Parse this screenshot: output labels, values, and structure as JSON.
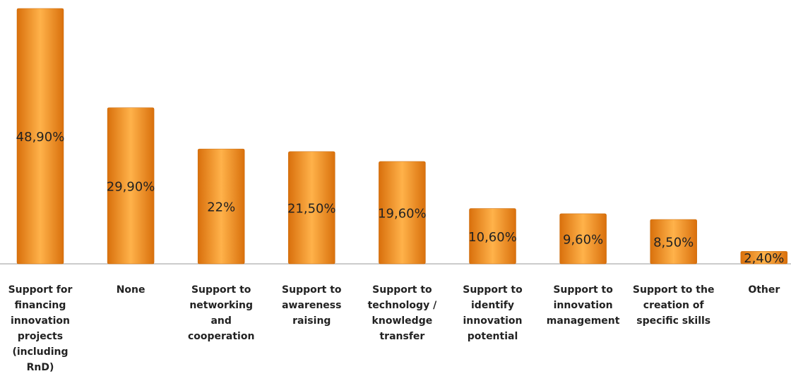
{
  "chart_data": {
    "type": "bar",
    "categories": [
      "Support for\nfinancing\ninnovation\nprojects\n(including\nRnD)",
      "None",
      "Support to\nnetworking\nand\ncooperation",
      "Support to\nawareness\nraising",
      "Support to\ntechnology /\nknowledge\ntransfer",
      "Support to\nidentify\ninnovation\npotential",
      "Support to\ninnovation\nmanagement",
      "Support to the\ncreation of\nspecific skills",
      "Other"
    ],
    "values": [
      48.9,
      29.9,
      22,
      21.5,
      19.6,
      10.6,
      9.6,
      8.5,
      2.4
    ],
    "value_labels": [
      "48,90%",
      "29,90%",
      "22%",
      "21,50%",
      "19,60%",
      "10,60%",
      "9,60%",
      "8,50%",
      "2,40%"
    ],
    "color": "#f39a2c"
  }
}
